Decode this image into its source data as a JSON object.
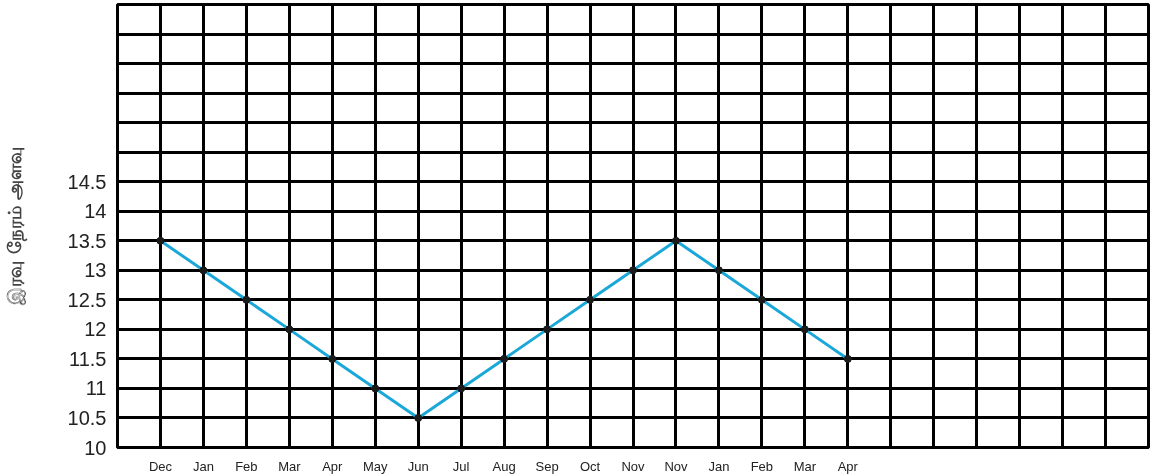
{
  "chart_data": {
    "type": "line",
    "ylabel": "இரவு நேரம் அளவு",
    "categories": [
      null,
      "Dec",
      "Jan",
      "Feb",
      "Mar",
      "Apr",
      "May",
      "Jun",
      "Jul",
      "Aug",
      "Sep",
      "Oct",
      "Nov",
      "Nov",
      "Jan",
      "Feb",
      "Mar",
      "Apr",
      null,
      null,
      null,
      null,
      null,
      null,
      null
    ],
    "series": [
      {
        "color": "#1ba8d8",
        "values": [
          null,
          13.5,
          13,
          12.5,
          12,
          11.5,
          11,
          10.5,
          11,
          11.5,
          12,
          12.5,
          13,
          13.5,
          13,
          12.5,
          12,
          11.5,
          null,
          null,
          null,
          null,
          null,
          null,
          null
        ]
      }
    ],
    "ylim": [
      10,
      17.5
    ],
    "yticks": [
      10,
      10.5,
      11,
      11.5,
      12,
      12.5,
      13,
      13.5,
      14,
      14.5,
      {
        "value": 15,
        "label": null
      },
      {
        "value": 15.5,
        "label": null
      },
      {
        "value": 16,
        "label": null
      },
      {
        "value": 16.5,
        "label": null
      },
      {
        "value": 17,
        "label": null
      },
      {
        "value": 17.5,
        "label": null
      }
    ],
    "grid": true,
    "marker": "circle",
    "line_style": "solid"
  }
}
